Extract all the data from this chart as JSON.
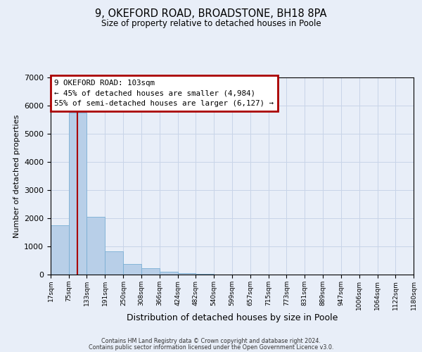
{
  "title": "9, OKEFORD ROAD, BROADSTONE, BH18 8PA",
  "subtitle": "Size of property relative to detached houses in Poole",
  "xlabel": "Distribution of detached houses by size in Poole",
  "ylabel": "Number of detached properties",
  "bar_edges": [
    17,
    75,
    133,
    191,
    250,
    308,
    366,
    424,
    482,
    540,
    599,
    657,
    715,
    773,
    831,
    889,
    947,
    1006,
    1064,
    1122,
    1180
  ],
  "bar_heights": [
    1750,
    5750,
    2050,
    820,
    370,
    220,
    100,
    55,
    30,
    10,
    5,
    0,
    0,
    0,
    0,
    0,
    0,
    0,
    0,
    0
  ],
  "bar_color": "#b8cfe8",
  "bar_edgecolor": "#7aafd4",
  "property_line_x": 103,
  "property_line_color": "#aa0000",
  "ylim": [
    0,
    7000
  ],
  "annotation_box_text": "9 OKEFORD ROAD: 103sqm\n← 45% of detached houses are smaller (4,984)\n55% of semi-detached houses are larger (6,127) →",
  "annotation_box_color": "#aa0000",
  "footer_line1": "Contains HM Land Registry data © Crown copyright and database right 2024.",
  "footer_line2": "Contains public sector information licensed under the Open Government Licence v3.0.",
  "tick_labels": [
    "17sqm",
    "75sqm",
    "133sqm",
    "191sqm",
    "250sqm",
    "308sqm",
    "366sqm",
    "424sqm",
    "482sqm",
    "540sqm",
    "599sqm",
    "657sqm",
    "715sqm",
    "773sqm",
    "831sqm",
    "889sqm",
    "947sqm",
    "1006sqm",
    "1064sqm",
    "1122sqm",
    "1180sqm"
  ],
  "grid_color": "#c8d4e8",
  "background_color": "#e8eef8"
}
